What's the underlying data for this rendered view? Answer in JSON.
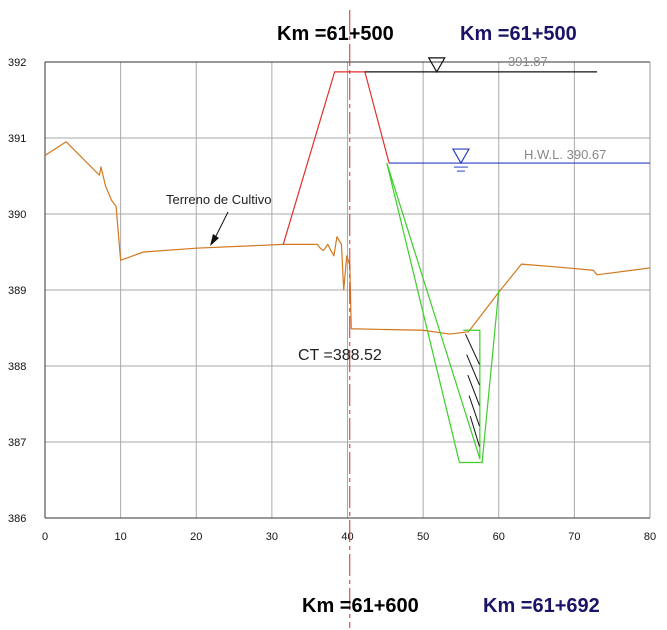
{
  "top_labels": {
    "km_left": "Km =61+500",
    "km_right": "Km =61+500"
  },
  "bottom_labels": {
    "km_left": "Km =61+600",
    "km_right": "Km =61+692"
  },
  "chart_data": {
    "type": "line",
    "title": "",
    "xlabel": "",
    "ylabel": "",
    "xlim": [
      0,
      80
    ],
    "ylim": [
      386,
      392
    ],
    "x_ticks": [
      "0",
      "10",
      "20",
      "30",
      "40",
      "50",
      "60",
      "70",
      "80"
    ],
    "y_ticks": [
      "386",
      "387",
      "388",
      "389",
      "390",
      "391",
      "392"
    ],
    "grid": true,
    "annotations": {
      "terrain_label": "Terreno de Cultivo",
      "ct_label": "CT =388.52",
      "hwl_label": "H.W.L. 390.67",
      "crest_label": "391.87"
    },
    "colors": {
      "terrain": "#d2781e",
      "embankment": "#e0302b",
      "channel": "#3ccf2a",
      "hwl": "#2b3fc4",
      "centerline": "#d42b2b",
      "grid": "#aaaaaa"
    },
    "series": [
      {
        "key": "terrain",
        "x": [
          0,
          2.8,
          7.2,
          7.4,
          8.0,
          8.8,
          9.4,
          10.0,
          13,
          20,
          31.5,
          34,
          36,
          36.4,
          36.8,
          37.4,
          37.8,
          38.2,
          38.6,
          39.2,
          39.5,
          39.9,
          40.3,
          40.5,
          45,
          50,
          53.5,
          56,
          60,
          63,
          68,
          72.5,
          73,
          80
        ],
        "y": [
          390.77,
          390.95,
          390.51,
          390.62,
          390.37,
          390.18,
          390.1,
          389.39,
          389.5,
          389.55,
          389.6,
          389.6,
          389.6,
          389.55,
          389.52,
          389.6,
          389.52,
          389.45,
          389.7,
          389.6,
          389.0,
          389.45,
          389.33,
          388.49,
          388.48,
          388.47,
          388.42,
          388.45,
          388.97,
          389.34,
          389.3,
          389.26,
          389.2,
          389.29
        ]
      },
      {
        "key": "embankment",
        "x": [
          31.5,
          38.3,
          42.3,
          45.5
        ],
        "y": [
          389.6,
          391.87,
          391.87,
          390.67
        ]
      },
      {
        "key": "channel_outer",
        "x": [
          45.2,
          54.8,
          57.8,
          60.0
        ],
        "y": [
          390.67,
          386.73,
          386.73,
          389.0
        ]
      },
      {
        "key": "channel_inner",
        "x": [
          45.2,
          57.5,
          57.5,
          55.3
        ],
        "y": [
          390.67,
          386.78,
          388.47,
          388.47
        ]
      },
      {
        "key": "crest_line",
        "x": [
          42.3,
          73.0
        ],
        "y": [
          391.87,
          391.87
        ]
      },
      {
        "key": "hwl_line",
        "x": [
          45.5,
          80.0
        ],
        "y": [
          390.67,
          390.67
        ]
      }
    ],
    "centerline_x": 40.3
  }
}
